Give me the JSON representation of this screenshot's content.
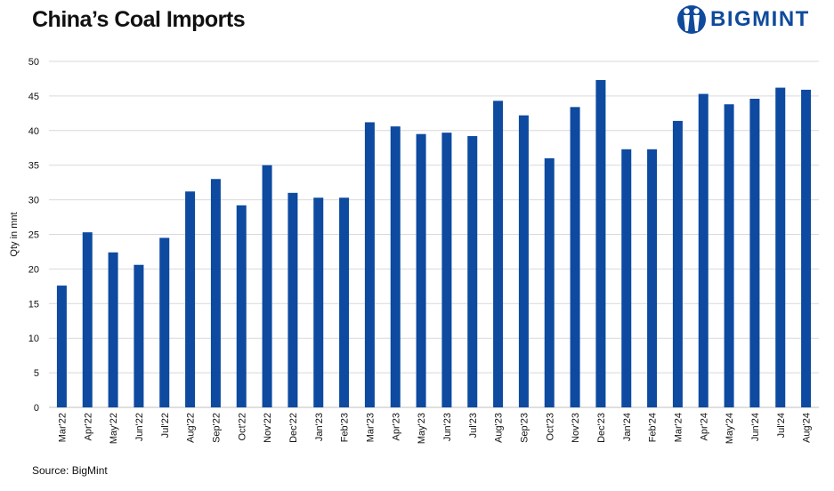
{
  "header": {
    "title": "China’s Coal Imports",
    "logo_text": "BIGMINT"
  },
  "footer": {
    "source": "Source: BigMint"
  },
  "colors": {
    "bar": "#0d4aa0",
    "grid": "#d9d9d9",
    "brand": "#0f4a9c"
  },
  "chart_data": {
    "type": "bar",
    "title": "China’s Coal Imports",
    "xlabel": "",
    "ylabel": "Qty in mnt",
    "ylim": [
      0,
      50
    ],
    "yticks": [
      0,
      5,
      10,
      15,
      20,
      25,
      30,
      35,
      40,
      45,
      50
    ],
    "grid": true,
    "categories": [
      "Mar'22",
      "Apr'22",
      "May'22",
      "Jun'22",
      "Jul'22",
      "Aug'22",
      "Sep'22",
      "Oct'22",
      "Nov'22",
      "Dec'22",
      "Jan'23",
      "Feb'23",
      "Mar'23",
      "Apr'23",
      "May'23",
      "Jun'23",
      "Jul'23",
      "Aug'23",
      "Sep'23",
      "Oct'23",
      "Nov'23",
      "Dec'23",
      "Jan'24",
      "Feb'24",
      "Mar'24",
      "Apr'24",
      "May'24",
      "Jun'24",
      "Jul'24",
      "Aug'24"
    ],
    "values": [
      17.6,
      25.3,
      22.4,
      20.6,
      24.5,
      31.2,
      33.0,
      29.2,
      35.0,
      31.0,
      30.3,
      30.3,
      41.2,
      40.6,
      39.5,
      39.7,
      39.2,
      44.3,
      42.2,
      36.0,
      43.4,
      47.3,
      37.3,
      37.3,
      41.4,
      45.3,
      43.8,
      44.6,
      46.2,
      45.9
    ]
  }
}
